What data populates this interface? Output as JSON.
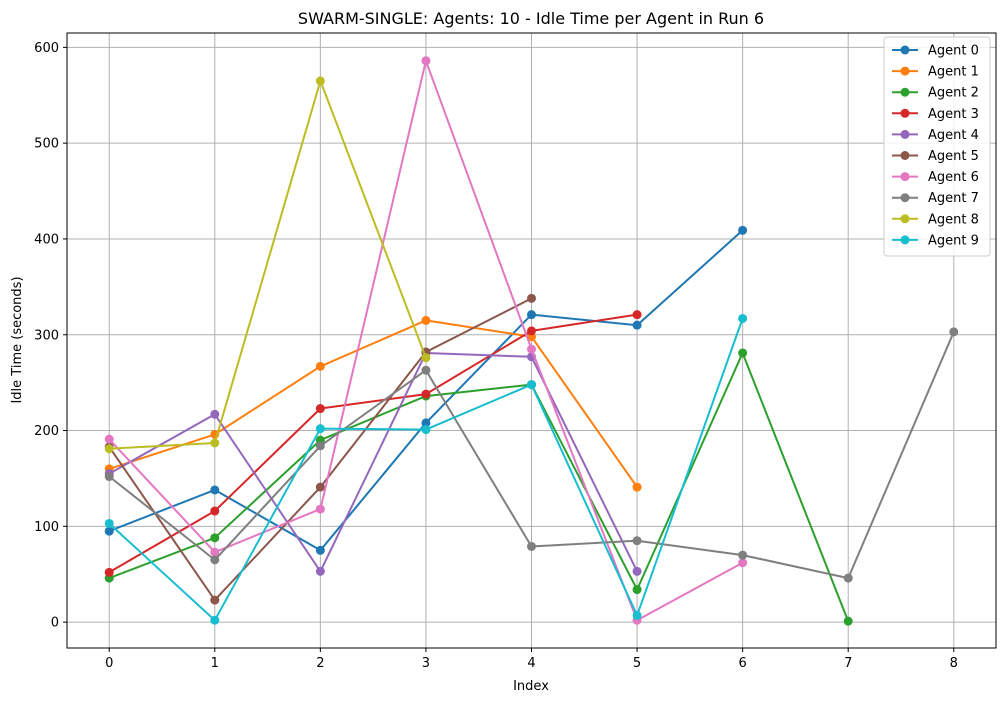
{
  "chart_data": {
    "type": "line",
    "title": "SWARM-SINGLE: Agents: 10 - Idle Time per Agent in Run 6",
    "xlabel": "Index",
    "ylabel": "Idle Time (seconds)",
    "xlim": [
      -0.4,
      8.4
    ],
    "ylim": [
      -27,
      615
    ],
    "xticks": [
      0,
      1,
      2,
      3,
      4,
      5,
      6,
      7,
      8
    ],
    "yticks": [
      0,
      100,
      200,
      300,
      400,
      500,
      600
    ],
    "grid": true,
    "legend_position": "top-right",
    "series": [
      {
        "name": "Agent 0",
        "color": "#1f77b4",
        "x": [
          0,
          1,
          2,
          3,
          4,
          5,
          6
        ],
        "values": [
          95,
          138,
          75,
          208,
          321,
          310,
          409
        ]
      },
      {
        "name": "Agent 1",
        "color": "#ff7f0e",
        "x": [
          0,
          1,
          2,
          3,
          4,
          5
        ],
        "values": [
          160,
          196,
          267,
          315,
          298,
          141
        ]
      },
      {
        "name": "Agent 2",
        "color": "#2ca02c",
        "x": [
          0,
          1,
          2,
          3,
          4,
          5,
          6,
          7
        ],
        "values": [
          46,
          88,
          190,
          236,
          248,
          34,
          281,
          1
        ]
      },
      {
        "name": "Agent 3",
        "color": "#d62728",
        "x": [
          0,
          1,
          2,
          3,
          4,
          5
        ],
        "values": [
          52,
          116,
          223,
          238,
          304,
          321
        ]
      },
      {
        "name": "Agent 4",
        "color": "#9467bd",
        "x": [
          0,
          1,
          2,
          3,
          4,
          5
        ],
        "values": [
          155,
          217,
          53,
          281,
          277,
          53
        ]
      },
      {
        "name": "Agent 5",
        "color": "#8c564b",
        "x": [
          0,
          1,
          2,
          3,
          4
        ],
        "values": [
          183,
          23,
          141,
          282,
          338
        ]
      },
      {
        "name": "Agent 6",
        "color": "#e377c2",
        "x": [
          0,
          1,
          2,
          3,
          4,
          5,
          6
        ],
        "values": [
          191,
          73,
          118,
          586,
          285,
          2,
          62
        ]
      },
      {
        "name": "Agent 7",
        "color": "#7f7f7f",
        "x": [
          0,
          1,
          2,
          3,
          4,
          5,
          6,
          7,
          8
        ],
        "values": [
          152,
          65,
          184,
          263,
          79,
          85,
          70,
          46,
          303
        ]
      },
      {
        "name": "Agent 8",
        "color": "#bcbd22",
        "x": [
          0,
          1,
          2,
          3
        ],
        "values": [
          181,
          187,
          565,
          276
        ]
      },
      {
        "name": "Agent 9",
        "color": "#17becf",
        "x": [
          0,
          1,
          2,
          3,
          4,
          5,
          6
        ],
        "values": [
          103,
          2,
          202,
          201,
          248,
          7,
          317
        ]
      }
    ]
  }
}
